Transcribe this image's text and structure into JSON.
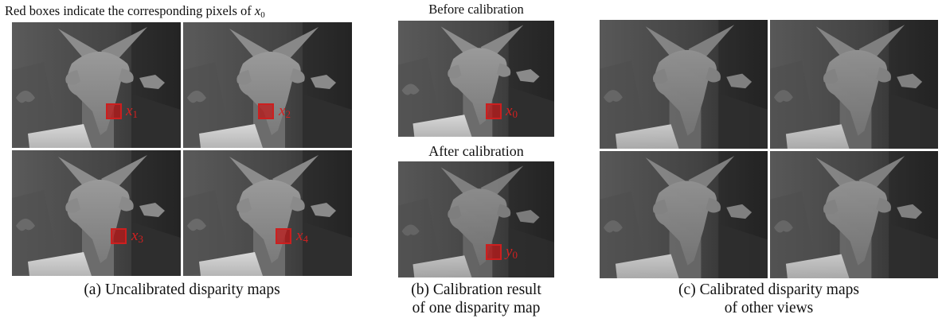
{
  "panel_a": {
    "title_text": "Red boxes indicate the corresponding pixels of",
    "title_var": "x",
    "title_sub": "0",
    "caption": "(a) Uncalibrated disparity maps",
    "labels": [
      {
        "var": "x",
        "sub": "1"
      },
      {
        "var": "x",
        "sub": "2"
      },
      {
        "var": "x",
        "sub": "3"
      },
      {
        "var": "x",
        "sub": "4"
      }
    ]
  },
  "panel_b": {
    "before_title": "Before calibration",
    "after_title": "After calibration",
    "caption_line1": "(b) Calibration result",
    "caption_line2": "of one disparity map",
    "before_label": {
      "var": "x",
      "sub": "0"
    },
    "after_label": {
      "var": "y",
      "sub": "0"
    }
  },
  "panel_c": {
    "caption_line1": "(c) Calibrated disparity maps",
    "caption_line2": "of other views"
  },
  "colors": {
    "highlight_red": "#cc1f1f",
    "label_red": "#d42020"
  }
}
